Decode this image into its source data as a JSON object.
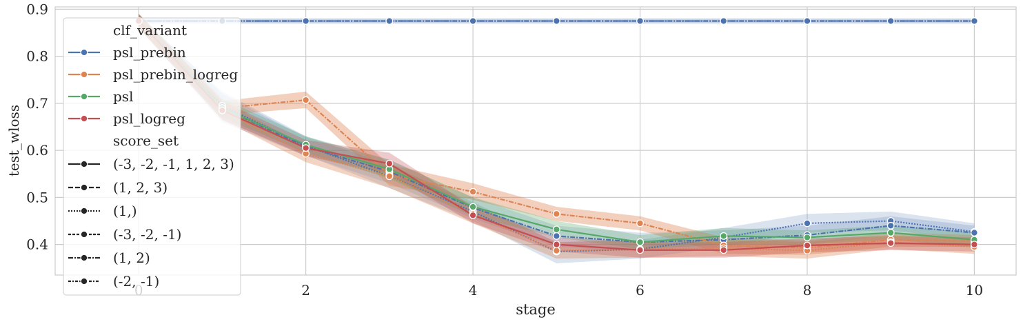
{
  "chart_data": {
    "type": "line",
    "xlabel": "stage",
    "ylabel": "test_wloss",
    "xlim": [
      -1,
      10.5
    ],
    "ylim": [
      0.335,
      0.905
    ],
    "xticks": [
      {
        "v": 0,
        "label": "0"
      },
      {
        "v": 2,
        "label": "2"
      },
      {
        "v": 4,
        "label": "4"
      },
      {
        "v": 6,
        "label": "6"
      },
      {
        "v": 8,
        "label": "8"
      },
      {
        "v": 10,
        "label": "10"
      }
    ],
    "yticks": [
      {
        "v": 0.4,
        "label": "0.4"
      },
      {
        "v": 0.5,
        "label": "0.5"
      },
      {
        "v": 0.6,
        "label": "0.6"
      },
      {
        "v": 0.7,
        "label": "0.7"
      },
      {
        "v": 0.8,
        "label": "0.8"
      },
      {
        "v": 0.9,
        "label": "0.9"
      }
    ],
    "grid": true,
    "legend": {
      "placement": "upper-left",
      "hue_title": "clf_variant",
      "style_title": "score_set"
    },
    "colors": {
      "psl_prebin": "#4c72b0",
      "psl_prebin_logreg": "#dd8452",
      "psl": "#55a868",
      "psl_logreg": "#c44e52"
    },
    "score_sets": [
      {
        "label": "(-3, -2, -1, 1, 2, 3)",
        "dash": ""
      },
      {
        "label": "(1, 2, 3)",
        "dash": "7,3"
      },
      {
        "label": "(1,)",
        "dash": "2,2"
      },
      {
        "label": "(-3, -2, -1)",
        "dash": "4,2"
      },
      {
        "label": "(1, 2)",
        "dash": "7,2,2,2"
      },
      {
        "label": "(-2, -1)",
        "dash": "4,2,2,2"
      }
    ],
    "series": [
      {
        "name": "psl_prebin",
        "color": "#4c72b0",
        "dash": "7,2,2,2",
        "band_opacity": 0.18,
        "x": [
          0,
          1,
          2,
          3,
          4,
          5,
          6,
          7,
          8,
          9,
          10
        ],
        "y": [
          0.875,
          0.875,
          0.875,
          0.875,
          0.875,
          0.875,
          0.875,
          0.875,
          0.875,
          0.875,
          0.875
        ],
        "lo": [
          0.869,
          0.869,
          0.869,
          0.869,
          0.869,
          0.869,
          0.869,
          0.869,
          0.869,
          0.869,
          0.869
        ],
        "hi": [
          0.881,
          0.881,
          0.881,
          0.881,
          0.881,
          0.881,
          0.881,
          0.881,
          0.881,
          0.881,
          0.881
        ]
      },
      {
        "name": "psl_prebin",
        "color": "#4c72b0",
        "dash": "2,2",
        "band_opacity": 0.18,
        "x": [
          0,
          1,
          2,
          3,
          4,
          5,
          6,
          7,
          8,
          9,
          10
        ],
        "y": [
          0.875,
          0.875,
          0.875,
          0.875,
          0.875,
          0.875,
          0.875,
          0.875,
          0.875,
          0.875,
          0.875
        ],
        "lo": [
          0.871,
          0.871,
          0.871,
          0.871,
          0.871,
          0.871,
          0.871,
          0.871,
          0.871,
          0.871,
          0.871
        ],
        "hi": [
          0.879,
          0.879,
          0.879,
          0.879,
          0.879,
          0.879,
          0.879,
          0.879,
          0.879,
          0.879,
          0.879
        ]
      },
      {
        "name": "psl_prebin",
        "color": "#4c72b0",
        "dash": "2,2",
        "band_opacity": 0.2,
        "x": [
          0,
          1,
          2,
          3,
          4,
          5,
          6,
          7,
          8,
          9,
          10
        ],
        "y": [
          0.875,
          0.695,
          0.61,
          0.545,
          0.47,
          0.385,
          0.39,
          0.415,
          0.445,
          0.45,
          0.427
        ],
        "lo": [
          0.865,
          0.665,
          0.59,
          0.52,
          0.45,
          0.36,
          0.37,
          0.395,
          0.425,
          0.43,
          0.41
        ],
        "hi": [
          0.885,
          0.725,
          0.63,
          0.57,
          0.49,
          0.405,
          0.41,
          0.435,
          0.465,
          0.47,
          0.445
        ]
      },
      {
        "name": "psl_prebin",
        "color": "#4c72b0",
        "dash": "7,2,2,2",
        "band_opacity": 0.2,
        "x": [
          0,
          1,
          2,
          3,
          4,
          5,
          6,
          7,
          8,
          9,
          10
        ],
        "y": [
          0.875,
          0.69,
          0.608,
          0.555,
          0.478,
          0.418,
          0.405,
          0.41,
          0.42,
          0.44,
          0.425
        ],
        "lo": [
          0.86,
          0.66,
          0.588,
          0.53,
          0.455,
          0.395,
          0.385,
          0.39,
          0.4,
          0.42,
          0.41
        ],
        "hi": [
          0.89,
          0.72,
          0.628,
          0.58,
          0.5,
          0.44,
          0.425,
          0.43,
          0.44,
          0.46,
          0.44
        ]
      },
      {
        "name": "psl_prebin_logreg",
        "color": "#dd8452",
        "dash": "7,2,2,2",
        "band_opacity": 0.38,
        "x": [
          0,
          1,
          2,
          3,
          4,
          5,
          6,
          7,
          8,
          9,
          10
        ],
        "y": [
          0.875,
          0.69,
          0.707,
          0.548,
          0.512,
          0.465,
          0.445,
          0.398,
          0.393,
          0.41,
          0.407
        ],
        "lo": [
          0.86,
          0.675,
          0.69,
          0.525,
          0.495,
          0.45,
          0.43,
          0.38,
          0.378,
          0.395,
          0.395
        ],
        "hi": [
          0.89,
          0.705,
          0.725,
          0.57,
          0.53,
          0.48,
          0.46,
          0.415,
          0.408,
          0.425,
          0.42
        ]
      },
      {
        "name": "psl_prebin_logreg",
        "color": "#dd8452",
        "dash": "2,2",
        "band_opacity": 0.35,
        "x": [
          0,
          1,
          2,
          3,
          4,
          5,
          6,
          7,
          8,
          9,
          10
        ],
        "y": [
          0.875,
          0.685,
          0.593,
          0.545,
          0.465,
          0.387,
          0.39,
          0.392,
          0.387,
          0.405,
          0.395
        ],
        "lo": [
          0.86,
          0.665,
          0.575,
          0.52,
          0.445,
          0.37,
          0.372,
          0.375,
          0.37,
          0.39,
          0.38
        ],
        "hi": [
          0.89,
          0.705,
          0.61,
          0.57,
          0.485,
          0.405,
          0.408,
          0.41,
          0.405,
          0.42,
          0.41
        ]
      },
      {
        "name": "psl",
        "color": "#55a868",
        "dash": "",
        "band_opacity": 0.3,
        "x": [
          0,
          1,
          2,
          3,
          4,
          5,
          6,
          7,
          8,
          9,
          10
        ],
        "y": [
          0.875,
          0.69,
          0.612,
          0.56,
          0.48,
          0.432,
          0.405,
          0.418,
          0.415,
          0.425,
          0.41
        ],
        "lo": [
          0.86,
          0.67,
          0.595,
          0.54,
          0.46,
          0.415,
          0.39,
          0.4,
          0.4,
          0.41,
          0.395
        ],
        "hi": [
          0.89,
          0.71,
          0.63,
          0.58,
          0.5,
          0.45,
          0.42,
          0.435,
          0.43,
          0.44,
          0.425
        ]
      },
      {
        "name": "psl_logreg",
        "color": "#c44e52",
        "dash": "",
        "band_opacity": 0.3,
        "x": [
          0,
          1,
          2,
          3,
          4,
          5,
          6,
          7,
          8,
          9,
          10
        ],
        "y": [
          0.875,
          0.685,
          0.605,
          0.572,
          0.462,
          0.4,
          0.388,
          0.388,
          0.398,
          0.403,
          0.4
        ],
        "lo": [
          0.86,
          0.665,
          0.588,
          0.55,
          0.445,
          0.385,
          0.372,
          0.372,
          0.383,
          0.388,
          0.385
        ],
        "hi": [
          0.89,
          0.705,
          0.622,
          0.595,
          0.48,
          0.415,
          0.405,
          0.405,
          0.413,
          0.418,
          0.415
        ]
      }
    ]
  }
}
